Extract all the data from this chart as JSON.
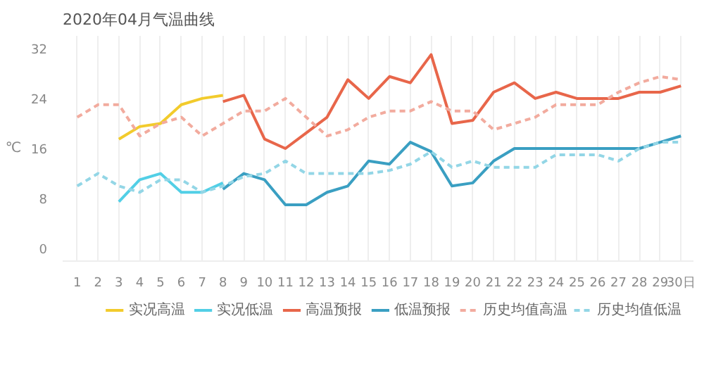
{
  "chart_data": {
    "type": "line",
    "title": "2020年04月气温曲线",
    "ylabel": "℃",
    "x": [
      1,
      2,
      3,
      4,
      5,
      6,
      7,
      8,
      9,
      10,
      11,
      12,
      13,
      14,
      15,
      16,
      17,
      18,
      19,
      20,
      21,
      22,
      23,
      24,
      25,
      26,
      27,
      28,
      29,
      30
    ],
    "xlim": [
      0.3,
      30.6
    ],
    "ylim": [
      -2,
      34
    ],
    "xticks": [
      1,
      2,
      3,
      4,
      5,
      6,
      7,
      8,
      9,
      10,
      11,
      12,
      13,
      14,
      15,
      16,
      17,
      18,
      19,
      20,
      21,
      22,
      23,
      24,
      25,
      26,
      27,
      28,
      29,
      {
        "value": 30,
        "label": "30日"
      }
    ],
    "yticks": [
      0,
      8,
      16,
      24,
      32
    ],
    "grid": "x",
    "legend": "bottom",
    "marker": "none",
    "series": [
      {
        "name": "实况高温",
        "color": "#f2cb2c",
        "line_style": "solid",
        "values": [
          null,
          null,
          17.5,
          19.5,
          20,
          23,
          24,
          24.5,
          null,
          null,
          null,
          null,
          null,
          null,
          null,
          null,
          null,
          null,
          null,
          null,
          null,
          null,
          null,
          null,
          null,
          null,
          null,
          null,
          null,
          null
        ]
      },
      {
        "name": "实况低温",
        "color": "#52cfe6",
        "line_style": "solid",
        "values": [
          null,
          null,
          7.5,
          11,
          12,
          9,
          9,
          10.5,
          null,
          null,
          null,
          null,
          null,
          null,
          null,
          null,
          null,
          null,
          null,
          null,
          null,
          null,
          null,
          null,
          null,
          null,
          null,
          null,
          null,
          null
        ]
      },
      {
        "name": "高温预报",
        "color": "#e8664a",
        "line_style": "solid",
        "values": [
          null,
          null,
          null,
          null,
          null,
          null,
          null,
          23.5,
          24.5,
          17.5,
          16,
          18.5,
          21,
          27,
          24,
          27.5,
          26.5,
          31,
          20,
          20.5,
          25,
          26.5,
          24,
          25,
          24,
          24,
          24,
          25,
          25,
          26
        ]
      },
      {
        "name": "低温预报",
        "color": "#3a9fc2",
        "line_style": "solid",
        "values": [
          null,
          null,
          null,
          null,
          null,
          null,
          null,
          9.5,
          12,
          11,
          7,
          7,
          9,
          10,
          14,
          13.5,
          17,
          15.5,
          10,
          10.5,
          14,
          16,
          16,
          16,
          16,
          16,
          16,
          16,
          17,
          18
        ]
      },
      {
        "name": "历史均值高温",
        "color": "#f2ab9e",
        "line_style": "dashed",
        "values": [
          21,
          23,
          23,
          18,
          20,
          21,
          18,
          20,
          22,
          22,
          24,
          21,
          18,
          19,
          21,
          22,
          22,
          23.5,
          22,
          22,
          19,
          20,
          21,
          23,
          23,
          23,
          25,
          26.5,
          27.5,
          27
        ]
      },
      {
        "name": "历史均值低温",
        "color": "#93d6e6",
        "line_style": "dashed",
        "values": [
          10,
          12,
          10,
          9,
          11,
          11,
          9,
          10,
          11.5,
          12,
          14,
          12,
          12,
          12,
          12,
          12.5,
          13.5,
          15.5,
          13,
          14,
          13,
          13,
          13,
          15,
          15,
          15,
          14,
          16,
          17,
          17
        ]
      }
    ]
  }
}
